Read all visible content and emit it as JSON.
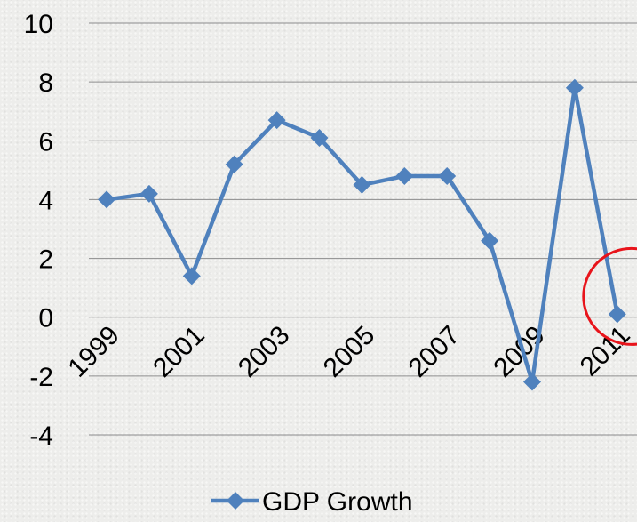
{
  "chart_data": {
    "type": "line",
    "x": [
      "1999",
      "2000",
      "2001",
      "2002",
      "2003",
      "2004",
      "2005",
      "2006",
      "2007",
      "2008",
      "2009",
      "2010",
      "2011"
    ],
    "x_tick_labels": [
      "1999",
      "2001",
      "2003",
      "2005",
      "2007",
      "2009",
      "2011"
    ],
    "series": [
      {
        "name": "GDP Growth",
        "values": [
          4.0,
          4.2,
          1.4,
          5.2,
          6.7,
          6.1,
          4.5,
          4.8,
          4.8,
          2.6,
          -2.2,
          7.8,
          0.1
        ]
      }
    ],
    "ylim": [
      -4,
      10
    ],
    "y_ticks": [
      -4,
      -2,
      0,
      2,
      4,
      6,
      8,
      10
    ],
    "grid": true,
    "legend_position": "bottom",
    "colors": {
      "line": "#4f81bd",
      "highlight_circle": "#e8141b"
    },
    "highlight": {
      "category": "2011",
      "shape": "circle"
    }
  }
}
